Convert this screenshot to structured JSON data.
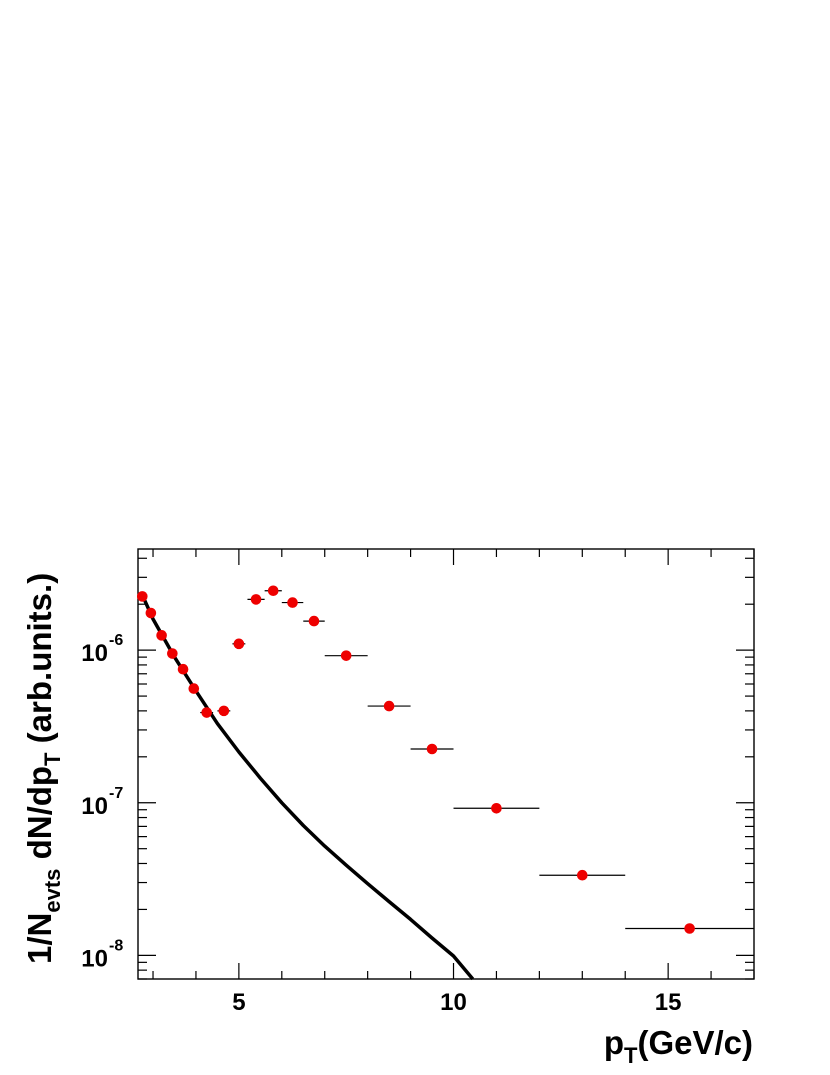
{
  "chart_data": {
    "type": "scatter",
    "xlabel": {
      "main": "p",
      "sub": "T",
      "rest": "(GeV/c)"
    },
    "ylabel": {
      "p1": "1/N",
      "s1": "evts",
      "p2": " dN/dp",
      "s2": "T",
      "p3": " (arb.units.)"
    },
    "x_scale": "linear",
    "y_scale": "log",
    "xlim": [
      2.65,
      17.0
    ],
    "ylim": [
      7e-09,
      4.6e-06
    ],
    "x_ticks": [
      5,
      10,
      15
    ],
    "x_tick_labels": [
      "5",
      "10",
      "15"
    ],
    "y_ticks": [
      1e-08,
      1e-07,
      1e-06
    ],
    "y_tick_labels": [
      {
        "base": "10",
        "exp": "-8"
      },
      {
        "base": "10",
        "exp": "-7"
      },
      {
        "base": "10",
        "exp": "-6"
      }
    ],
    "marker_color": "#ee0000",
    "curve_color": "#000000",
    "series": [
      {
        "kind": "points",
        "points": [
          {
            "x": 2.75,
            "y": 2.25e-06,
            "xerr": 0.05
          },
          {
            "x": 2.95,
            "y": 1.75e-06,
            "xerr": 0.05
          },
          {
            "x": 3.2,
            "y": 1.25e-06,
            "xerr": 0.05
          },
          {
            "x": 3.45,
            "y": 9.5e-07,
            "xerr": 0.05
          },
          {
            "x": 3.7,
            "y": 7.5e-07,
            "xerr": 0.05
          },
          {
            "x": 3.95,
            "y": 5.6e-07,
            "xerr": 0.05
          },
          {
            "x": 4.25,
            "y": 3.9e-07,
            "xerr": 0.15
          },
          {
            "x": 4.65,
            "y": 4e-07,
            "xerr": 0.15
          },
          {
            "x": 5.0,
            "y": 1.1e-06,
            "xerr": 0.15
          },
          {
            "x": 5.4,
            "y": 2.15e-06,
            "xerr": 0.2
          },
          {
            "x": 5.8,
            "y": 2.45e-06,
            "xerr": 0.2
          },
          {
            "x": 6.25,
            "y": 2.05e-06,
            "xerr": 0.25
          },
          {
            "x": 6.75,
            "y": 1.55e-06,
            "xerr": 0.25
          },
          {
            "x": 7.5,
            "y": 9.2e-07,
            "xerr": 0.5
          },
          {
            "x": 8.5,
            "y": 4.3e-07,
            "xerr": 0.5
          },
          {
            "x": 9.5,
            "y": 2.25e-07,
            "xerr": 0.5
          },
          {
            "x": 11.0,
            "y": 9.2e-08,
            "xerr": 1.0
          },
          {
            "x": 13.0,
            "y": 3.35e-08,
            "xerr": 1.0
          },
          {
            "x": 15.5,
            "y": 1.5e-08,
            "xerr": 1.5
          }
        ]
      },
      {
        "kind": "curve",
        "points": [
          {
            "x": 2.75,
            "y": 2.3e-06
          },
          {
            "x": 3.0,
            "y": 1.6e-06
          },
          {
            "x": 3.5,
            "y": 9e-07
          },
          {
            "x": 4.0,
            "y": 5.4e-07
          },
          {
            "x": 4.5,
            "y": 3.3e-07
          },
          {
            "x": 5.0,
            "y": 2.15e-07
          },
          {
            "x": 5.5,
            "y": 1.45e-07
          },
          {
            "x": 6.0,
            "y": 1e-07
          },
          {
            "x": 6.5,
            "y": 7.1e-08
          },
          {
            "x": 7.0,
            "y": 5.2e-08
          },
          {
            "x": 7.5,
            "y": 3.9e-08
          },
          {
            "x": 8.0,
            "y": 2.95e-08
          },
          {
            "x": 8.5,
            "y": 2.25e-08
          },
          {
            "x": 9.0,
            "y": 1.72e-08
          },
          {
            "x": 9.5,
            "y": 1.3e-08
          },
          {
            "x": 10.0,
            "y": 9.9e-09
          },
          {
            "x": 10.45,
            "y": 7e-09
          }
        ]
      }
    ]
  }
}
